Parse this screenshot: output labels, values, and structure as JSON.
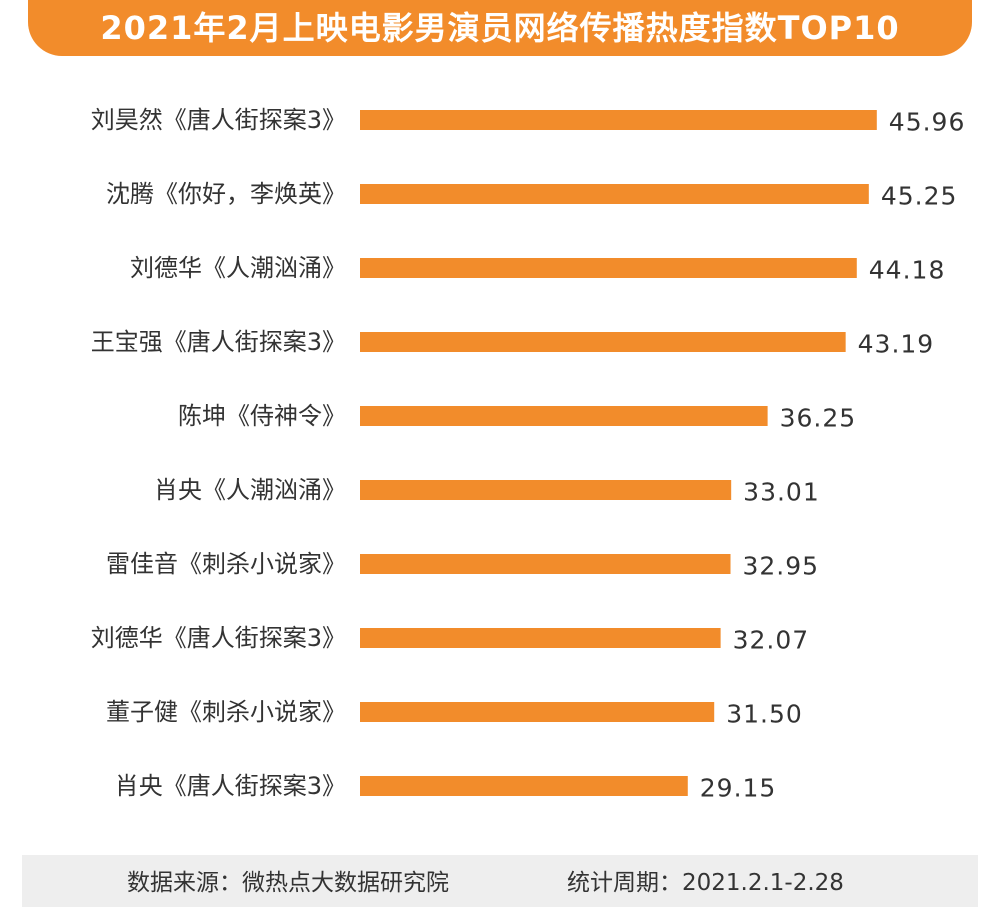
{
  "colors": {
    "accent": "#f28c2b",
    "bar": "#f28c2b",
    "text": "#333333",
    "footer_bg": "#eeeeee"
  },
  "footer": {
    "source": "数据来源：微热点大数据研究院",
    "period": "统计周期：2021.2.1-2.28"
  },
  "chart_data": {
    "type": "bar",
    "orientation": "horizontal",
    "title": "2021年2月上映电影男演员网络传播热度指数TOP10",
    "categories": [
      "刘昊然《唐人街探案3》",
      "沈腾《你好，李焕英》",
      "刘德华《人潮汹涌》",
      "王宝强《唐人街探案3》",
      "陈坤《侍神令》",
      "肖央《人潮汹涌》",
      "雷佳音《刺杀小说家》",
      "刘德华《唐人街探案3》",
      "董子健《刺杀小说家》",
      "肖央《唐人街探案3》"
    ],
    "values": [
      45.96,
      45.25,
      44.18,
      43.19,
      36.25,
      33.01,
      32.95,
      32.07,
      31.5,
      29.15
    ],
    "value_labels": [
      "45.96",
      "45.25",
      "44.18",
      "43.19",
      "36.25",
      "33.01",
      "32.95",
      "32.07",
      "31.50",
      "29.15"
    ],
    "xlim": [
      0,
      46.6
    ],
    "xlabel": "",
    "ylabel": "",
    "grid": false,
    "legend": "none"
  }
}
